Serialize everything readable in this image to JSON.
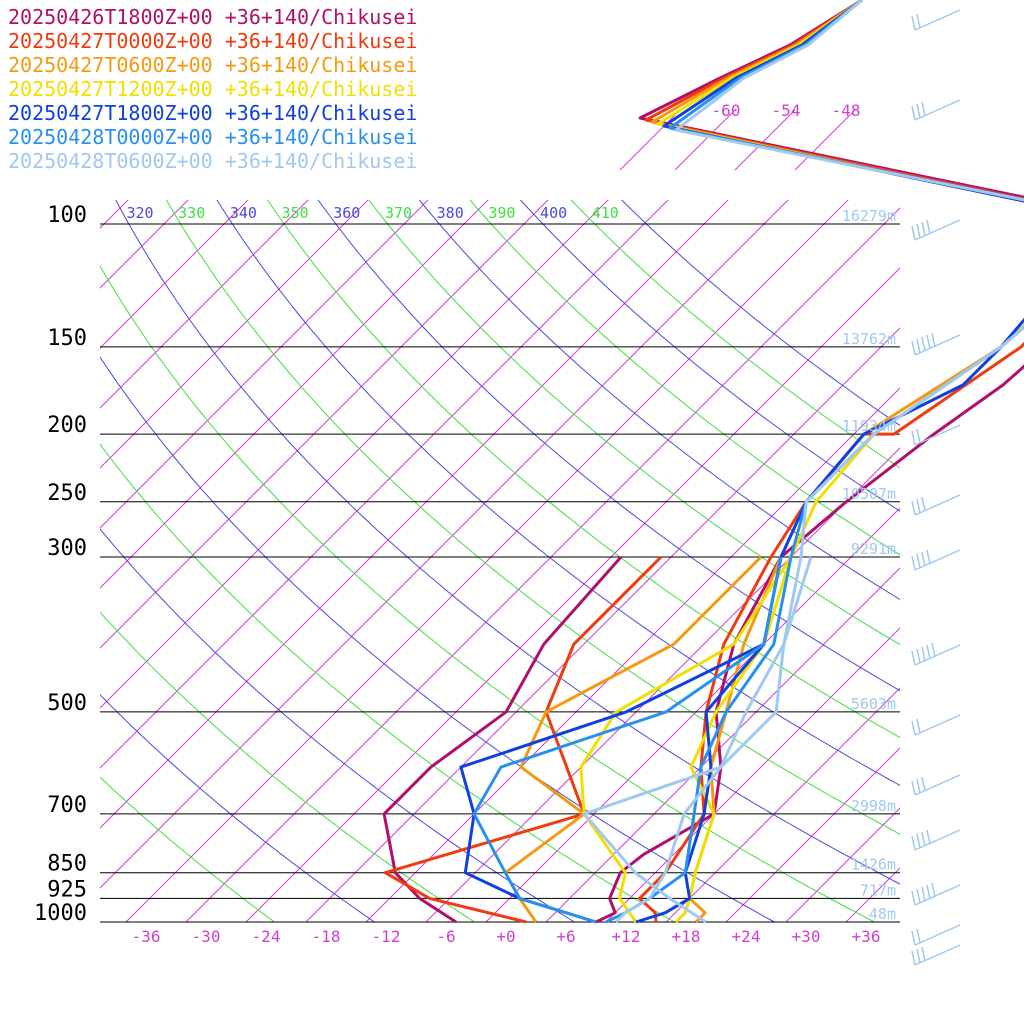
{
  "chart_data": {
    "type": "line",
    "title": "",
    "xlabel": "",
    "ylabel": "",
    "x_axis": {
      "label": "",
      "ticks": [
        -36,
        -30,
        -24,
        -18,
        -12,
        -6,
        0,
        6,
        12,
        18,
        24,
        30,
        36
      ],
      "tick_labels": [
        "-36",
        "-30",
        "-24",
        "-18",
        "-12",
        "-6",
        "+0",
        "+6",
        "+12",
        "+18",
        "+24",
        "+30",
        "+36"
      ],
      "xlim": [
        -40,
        40
      ],
      "color": "#d040d0"
    },
    "y_axis": {
      "label": "",
      "scale": "log",
      "ticks": [
        100,
        150,
        200,
        250,
        300,
        500,
        700,
        850,
        925,
        1000
      ],
      "ylim": [
        1000,
        100
      ]
    },
    "heights": [
      {
        "p": 100,
        "label": "16279m"
      },
      {
        "p": 150,
        "label": "13762m"
      },
      {
        "p": 200,
        "label": "11934m"
      },
      {
        "p": 250,
        "label": "10507m"
      },
      {
        "p": 300,
        "label": "9291m"
      },
      {
        "p": 500,
        "label": "5603m"
      },
      {
        "p": 700,
        "label": "2998m"
      },
      {
        "p": 850,
        "label": "1426m"
      },
      {
        "p": 925,
        "label": "717m"
      },
      {
        "p": 1000,
        "label": "48m"
      }
    ],
    "upper_temp_labels": [
      "-60",
      "-54",
      "-48"
    ],
    "theta_labels": [
      {
        "value": "320",
        "color": "#4a4ae0"
      },
      {
        "value": "330",
        "color": "#40e040"
      },
      {
        "value": "340",
        "color": "#4a4ae0"
      },
      {
        "value": "350",
        "color": "#40e040"
      },
      {
        "value": "360",
        "color": "#4a4ae0"
      },
      {
        "value": "370",
        "color": "#40e040"
      },
      {
        "value": "380",
        "color": "#4a4ae0"
      },
      {
        "value": "390",
        "color": "#40e040"
      },
      {
        "value": "400",
        "color": "#4a4ae0"
      },
      {
        "value": "410",
        "color": "#40e040"
      }
    ],
    "series": [
      {
        "name": "20250426T1800Z+00 +36+140/Chikusei",
        "color": "#b0106a",
        "temperature": [
          [
            1000,
            9
          ],
          [
            970,
            10
          ],
          [
            925,
            8
          ],
          [
            850,
            6.5
          ],
          [
            800,
            7
          ],
          [
            700,
            10
          ],
          [
            600,
            6
          ],
          [
            500,
            0
          ],
          [
            400,
            -5
          ],
          [
            300,
            -9
          ],
          [
            250,
            -8
          ],
          [
            200,
            -6
          ],
          [
            170,
            -4
          ],
          [
            150,
            -3.5
          ],
          [
            130,
            -3.5
          ],
          [
            100,
            -5
          ]
        ],
        "dewpoint": [
          [
            1000,
            -5
          ],
          [
            925,
            -11
          ],
          [
            850,
            -16
          ],
          [
            700,
            -23
          ],
          [
            600,
            -23
          ],
          [
            500,
            -21
          ],
          [
            400,
            -24
          ],
          [
            300,
            -25
          ]
        ]
      },
      {
        "name": "20250427T0000Z+00 +36+140/Chikusei",
        "color": "#f03a10",
        "temperature": [
          [
            1000,
            15
          ],
          [
            970,
            14
          ],
          [
            925,
            11
          ],
          [
            850,
            11
          ],
          [
            700,
            9
          ],
          [
            600,
            4
          ],
          [
            500,
            -1
          ],
          [
            400,
            -6
          ],
          [
            300,
            -10
          ],
          [
            250,
            -12
          ],
          [
            200,
            -13
          ],
          [
            200,
            -10
          ],
          [
            150,
            -6
          ],
          [
            100,
            -6
          ]
        ],
        "dewpoint": [
          [
            1000,
            2
          ],
          [
            925,
            -10
          ],
          [
            850,
            -17
          ],
          [
            700,
            -3
          ],
          [
            500,
            -17
          ],
          [
            400,
            -21
          ],
          [
            300,
            -21
          ]
        ]
      },
      {
        "name": "20250427T0600Z+00 +36+140/Chikusei",
        "color": "#f59a10",
        "temperature": [
          [
            1000,
            19
          ],
          [
            970,
            19
          ],
          [
            925,
            16
          ],
          [
            850,
            14
          ],
          [
            700,
            10
          ],
          [
            600,
            5
          ],
          [
            500,
            1
          ],
          [
            400,
            -4
          ],
          [
            300,
            -9
          ],
          [
            250,
            -12
          ],
          [
            200,
            -13
          ],
          [
            150,
            -8
          ],
          [
            100,
            -7
          ]
        ],
        "dewpoint": [
          [
            1000,
            3
          ],
          [
            925,
            -1
          ],
          [
            850,
            -5
          ],
          [
            700,
            -3
          ],
          [
            600,
            -14
          ],
          [
            500,
            -17
          ],
          [
            400,
            -11
          ],
          [
            300,
            -11
          ]
        ]
      },
      {
        "name": "20250427T1200Z+00 +36+140/Chikusei",
        "color": "#f0e000",
        "temperature": [
          [
            1000,
            17
          ],
          [
            970,
            17
          ],
          [
            925,
            16
          ],
          [
            850,
            14
          ],
          [
            700,
            10
          ],
          [
            600,
            3
          ],
          [
            500,
            0
          ],
          [
            400,
            -2
          ],
          [
            300,
            -8
          ],
          [
            250,
            -11
          ],
          [
            200,
            -12
          ],
          [
            150,
            -8
          ],
          [
            100,
            -7
          ]
        ],
        "dewpoint": [
          [
            1000,
            13
          ],
          [
            925,
            9
          ],
          [
            850,
            7
          ],
          [
            700,
            -3
          ],
          [
            600,
            -8
          ],
          [
            500,
            -10
          ],
          [
            400,
            -5
          ],
          [
            300,
            -8
          ]
        ]
      },
      {
        "name": "20250427T1800Z+00 +36+140/Chikusei",
        "color": "#1040e0",
        "temperature": [
          [
            1000,
            13
          ],
          [
            970,
            15
          ],
          [
            925,
            16
          ],
          [
            850,
            13
          ],
          [
            700,
            9
          ],
          [
            600,
            5
          ],
          [
            500,
            -1
          ],
          [
            400,
            -2
          ],
          [
            300,
            -9
          ],
          [
            250,
            -12
          ],
          [
            200,
            -13
          ],
          [
            170,
            -8
          ],
          [
            150,
            -8
          ],
          [
            120,
            -9
          ],
          [
            100,
            -7
          ]
        ],
        "dewpoint": [
          [
            1000,
            9
          ],
          [
            925,
            -1
          ],
          [
            850,
            -9
          ],
          [
            700,
            -14
          ],
          [
            600,
            -20
          ],
          [
            500,
            -9
          ],
          [
            400,
            -2
          ],
          [
            300,
            -9
          ]
        ]
      },
      {
        "name": "20250428T0000Z+00 +36+140/Chikusei",
        "color": "#2890f0",
        "temperature": [
          [
            1000,
            10
          ],
          [
            970,
            11
          ],
          [
            925,
            12
          ],
          [
            850,
            13
          ],
          [
            700,
            8
          ],
          [
            600,
            4
          ],
          [
            500,
            1
          ],
          [
            400,
            -1
          ],
          [
            300,
            -8
          ],
          [
            250,
            -12
          ],
          [
            200,
            -12
          ],
          [
            150,
            -8
          ],
          [
            100,
            -6
          ]
        ],
        "dewpoint": [
          [
            1000,
            9
          ],
          [
            925,
            -1
          ],
          [
            850,
            -5
          ],
          [
            700,
            -14
          ],
          [
            600,
            -16
          ],
          [
            500,
            -5
          ],
          [
            400,
            -2
          ],
          [
            300,
            -9
          ]
        ]
      },
      {
        "name": "20250428T0600Z+00 +36+140/Chikusei",
        "color": "#a0c8f0",
        "temperature": [
          [
            1000,
            11
          ],
          [
            970,
            11
          ],
          [
            925,
            12
          ],
          [
            850,
            11
          ],
          [
            700,
            7
          ],
          [
            600,
            6
          ],
          [
            500,
            3
          ],
          [
            400,
            0
          ],
          [
            300,
            -7
          ],
          [
            250,
            -12
          ],
          [
            200,
            -12
          ],
          [
            150,
            -8
          ],
          [
            100,
            -6
          ]
        ],
        "dewpoint": [
          [
            1000,
            20
          ],
          [
            925,
            14
          ],
          [
            850,
            8
          ],
          [
            700,
            -3
          ],
          [
            600,
            6
          ],
          [
            500,
            6
          ],
          [
            400,
            0
          ],
          [
            300,
            -6
          ]
        ]
      }
    ],
    "wind_barbs_color": "#a0c8f0",
    "grid": true,
    "legend_position": "top-left"
  }
}
